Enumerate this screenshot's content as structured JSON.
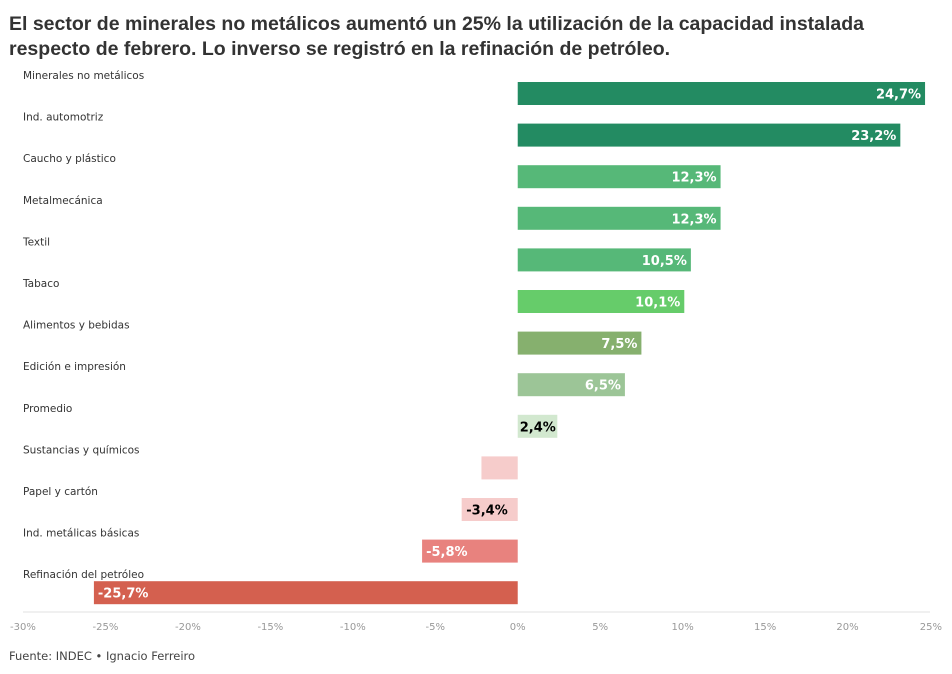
{
  "title": "El sector de minerales no metálicos aumentó un 25% la utilización de la capacidad instalada respecto de febrero. Lo inverso se registró en la refinación de petróleo.",
  "source": "Fuente: INDEC • Ignacio Ferreiro",
  "chart_data": {
    "type": "bar",
    "orientation": "horizontal",
    "title": "El sector de minerales no metálicos aumentó un 25% la utilización de la capacidad instalada respecto de febrero. Lo inverso se registró en la refinación de petróleo.",
    "xlabel": "",
    "ylabel": "",
    "xlim": [
      -30,
      25
    ],
    "xticks": [
      -30,
      -25,
      -20,
      -15,
      -10,
      -5,
      0,
      5,
      10,
      15,
      20,
      25
    ],
    "xtick_labels": [
      "-30%",
      "-25%",
      "-20%",
      "-15%",
      "-10%",
      "-5%",
      "0%",
      "5%",
      "10%",
      "15%",
      "20%",
      "25%"
    ],
    "grid": false,
    "categories": [
      "Minerales no metálicos",
      "Ind. automotriz",
      "Caucho y plástico",
      "Metalmecánica",
      "Textil",
      "Tabaco",
      "Alimentos y bebidas",
      "Edición e impresión",
      "Promedio",
      "Sustancias y químicos",
      "Papel y cartón",
      "Ind. metálicas básicas",
      "Refinación del petróleo"
    ],
    "values": [
      24.7,
      23.2,
      12.3,
      12.3,
      10.5,
      10.1,
      7.5,
      6.5,
      2.4,
      -2.2,
      -3.4,
      -5.8,
      -25.7
    ],
    "value_labels": [
      "24,7%",
      "23,2%",
      "12,3%",
      "12,3%",
      "10,5%",
      "10,1%",
      "7,5%",
      "6,5%",
      "2,4%",
      "",
      "-3,4%",
      "-5,8%",
      "-25,7%"
    ],
    "colors": [
      "#238b62",
      "#238b62",
      "#56b878",
      "#56b878",
      "#56b878",
      "#66cc6a",
      "#86b06e",
      "#9cc597",
      "#d2e8cf",
      "#f6cccb",
      "#f6cccb",
      "#e8827e",
      "#d4604f"
    ],
    "label_colors": [
      "#ffffff",
      "#ffffff",
      "#ffffff",
      "#ffffff",
      "#ffffff",
      "#ffffff",
      "#ffffff",
      "#ffffff",
      "#000000",
      "#000000",
      "#000000",
      "#ffffff",
      "#ffffff"
    ]
  }
}
